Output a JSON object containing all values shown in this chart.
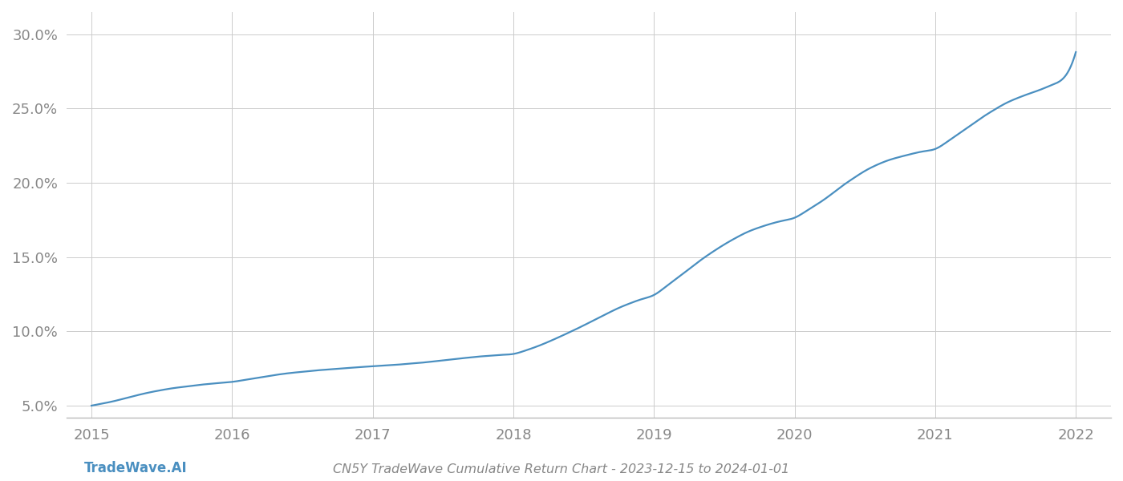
{
  "title": "CN5Y TradeWave Cumulative Return Chart - 2023-12-15 to 2024-01-01",
  "watermark": "TradeWave.AI",
  "line_color": "#4a8fc0",
  "background_color": "#ffffff",
  "grid_color": "#cccccc",
  "x_values": [
    2015.0,
    2015.083,
    2015.167,
    2015.25,
    2015.333,
    2015.417,
    2015.5,
    2015.583,
    2015.667,
    2015.75,
    2015.833,
    2015.917,
    2016.0,
    2016.083,
    2016.167,
    2016.25,
    2016.333,
    2016.417,
    2016.5,
    2016.583,
    2016.667,
    2016.75,
    2016.833,
    2016.917,
    2017.0,
    2017.083,
    2017.167,
    2017.25,
    2017.333,
    2017.417,
    2017.5,
    2017.583,
    2017.667,
    2017.75,
    2017.833,
    2017.917,
    2018.0,
    2018.083,
    2018.167,
    2018.25,
    2018.333,
    2018.417,
    2018.5,
    2018.583,
    2018.667,
    2018.75,
    2018.833,
    2018.917,
    2019.0,
    2019.083,
    2019.167,
    2019.25,
    2019.333,
    2019.417,
    2019.5,
    2019.583,
    2019.667,
    2019.75,
    2019.833,
    2019.917,
    2020.0,
    2020.083,
    2020.167,
    2020.25,
    2020.333,
    2020.417,
    2020.5,
    2020.583,
    2020.667,
    2020.75,
    2020.833,
    2020.917,
    2021.0,
    2021.083,
    2021.167,
    2021.25,
    2021.333,
    2021.417,
    2021.5,
    2021.583,
    2021.667,
    2021.75,
    2021.833,
    2021.917,
    2022.0
  ],
  "y_values": [
    5.0,
    5.15,
    5.32,
    5.52,
    5.72,
    5.9,
    6.05,
    6.18,
    6.28,
    6.38,
    6.46,
    6.53,
    6.6,
    6.72,
    6.85,
    6.98,
    7.1,
    7.2,
    7.28,
    7.36,
    7.42,
    7.48,
    7.54,
    7.6,
    7.65,
    7.7,
    7.75,
    7.82,
    7.88,
    7.96,
    8.05,
    8.14,
    8.22,
    8.3,
    8.36,
    8.42,
    8.48,
    8.7,
    8.98,
    9.3,
    9.65,
    10.02,
    10.4,
    10.8,
    11.2,
    11.58,
    11.9,
    12.18,
    12.45,
    13.0,
    13.6,
    14.2,
    14.8,
    15.35,
    15.85,
    16.3,
    16.7,
    17.0,
    17.25,
    17.45,
    17.65,
    18.1,
    18.6,
    19.15,
    19.75,
    20.3,
    20.8,
    21.2,
    21.52,
    21.75,
    21.95,
    22.12,
    22.28,
    22.75,
    23.3,
    23.85,
    24.4,
    24.9,
    25.35,
    25.7,
    26.0,
    26.28,
    26.6,
    27.1,
    28.8
  ],
  "xticks": [
    2015,
    2016,
    2017,
    2018,
    2019,
    2020,
    2021,
    2022
  ],
  "yticks": [
    5.0,
    10.0,
    15.0,
    20.0,
    25.0,
    30.0
  ],
  "ylim": [
    4.2,
    31.5
  ],
  "xlim": [
    2014.82,
    2022.25
  ],
  "tick_color": "#888888",
  "tick_fontsize": 13,
  "title_fontsize": 11.5,
  "watermark_fontsize": 12,
  "line_width": 1.6
}
